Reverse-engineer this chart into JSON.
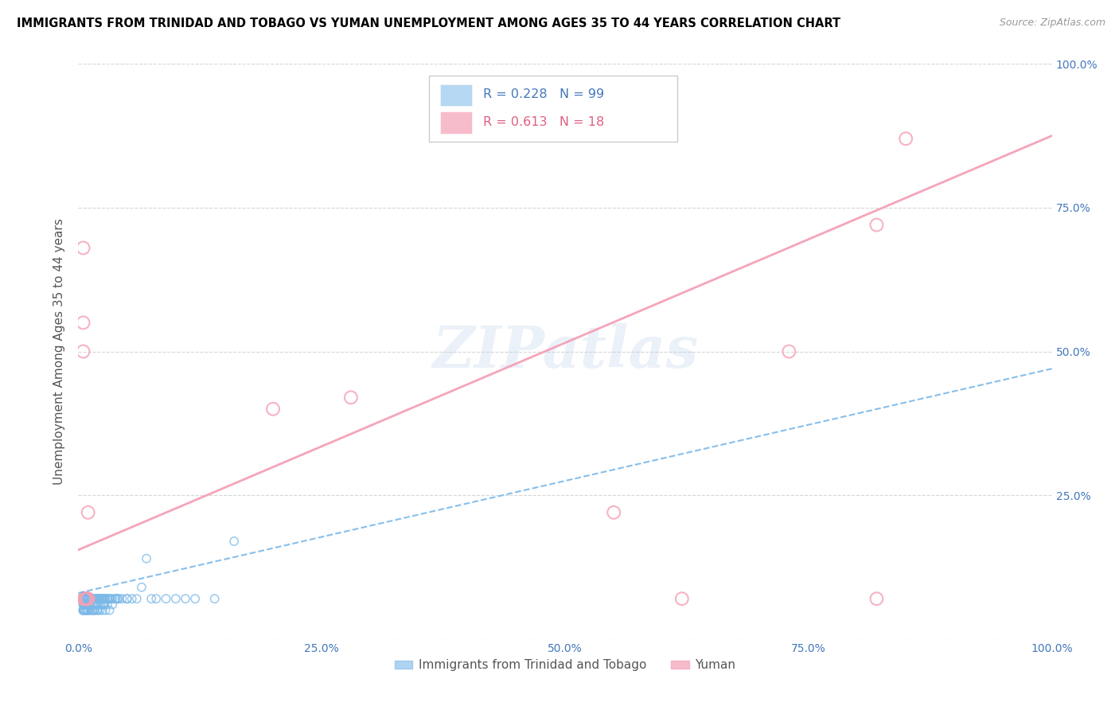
{
  "title": "IMMIGRANTS FROM TRINIDAD AND TOBAGO VS YUMAN UNEMPLOYMENT AMONG AGES 35 TO 44 YEARS CORRELATION CHART",
  "source": "Source: ZipAtlas.com",
  "ylabel": "Unemployment Among Ages 35 to 44 years",
  "xlim": [
    0,
    1.0
  ],
  "ylim": [
    0,
    1.0
  ],
  "xticks": [
    0.0,
    0.25,
    0.5,
    0.75,
    1.0
  ],
  "yticks": [
    0.0,
    0.25,
    0.5,
    0.75,
    1.0
  ],
  "xtick_labels": [
    "0.0%",
    "25.0%",
    "50.0%",
    "75.0%",
    "100.0%"
  ],
  "right_ytick_labels": [
    "25.0%",
    "50.0%",
    "75.0%",
    "100.0%"
  ],
  "legend_blue_label": "Immigrants from Trinidad and Tobago",
  "legend_pink_label": "Yuman",
  "R_blue": 0.228,
  "N_blue": 99,
  "R_pink": 0.613,
  "N_pink": 18,
  "blue_scatter_color": "#7ab8e8",
  "pink_scatter_color": "#f4a0b5",
  "watermark": "ZIPatlas",
  "blue_trend_intercept": 0.08,
  "blue_trend_slope": 0.39,
  "pink_trend_intercept": 0.155,
  "pink_trend_slope": 0.72,
  "blue_points_x": [
    0.005,
    0.005,
    0.005,
    0.005,
    0.005,
    0.005,
    0.005,
    0.006,
    0.006,
    0.006,
    0.007,
    0.007,
    0.007,
    0.007,
    0.008,
    0.008,
    0.008,
    0.008,
    0.009,
    0.009,
    0.009,
    0.01,
    0.01,
    0.01,
    0.01,
    0.01,
    0.01,
    0.01,
    0.01,
    0.01,
    0.012,
    0.012,
    0.012,
    0.012,
    0.013,
    0.013,
    0.014,
    0.014,
    0.015,
    0.015,
    0.015,
    0.016,
    0.016,
    0.016,
    0.017,
    0.017,
    0.018,
    0.018,
    0.019,
    0.019,
    0.02,
    0.02,
    0.02,
    0.02,
    0.02,
    0.021,
    0.022,
    0.022,
    0.023,
    0.023,
    0.024,
    0.025,
    0.025,
    0.025,
    0.025,
    0.026,
    0.026,
    0.027,
    0.027,
    0.028,
    0.028,
    0.03,
    0.03,
    0.03,
    0.032,
    0.032,
    0.033,
    0.035,
    0.035,
    0.038,
    0.038,
    0.04,
    0.04,
    0.042,
    0.045,
    0.05,
    0.05,
    0.055,
    0.06,
    0.065,
    0.07,
    0.075,
    0.08,
    0.09,
    0.1,
    0.11,
    0.12,
    0.14,
    0.16
  ],
  "blue_points_y": [
    0.05,
    0.05,
    0.05,
    0.06,
    0.06,
    0.07,
    0.07,
    0.05,
    0.05,
    0.06,
    0.05,
    0.06,
    0.06,
    0.07,
    0.05,
    0.06,
    0.07,
    0.07,
    0.05,
    0.06,
    0.07,
    0.05,
    0.05,
    0.06,
    0.06,
    0.07,
    0.07,
    0.07,
    0.07,
    0.07,
    0.05,
    0.06,
    0.07,
    0.07,
    0.06,
    0.07,
    0.05,
    0.07,
    0.05,
    0.06,
    0.07,
    0.05,
    0.06,
    0.07,
    0.05,
    0.07,
    0.06,
    0.07,
    0.05,
    0.07,
    0.05,
    0.06,
    0.06,
    0.07,
    0.07,
    0.07,
    0.05,
    0.07,
    0.06,
    0.07,
    0.07,
    0.05,
    0.06,
    0.07,
    0.07,
    0.06,
    0.07,
    0.06,
    0.07,
    0.05,
    0.07,
    0.06,
    0.07,
    0.07,
    0.05,
    0.07,
    0.07,
    0.06,
    0.07,
    0.07,
    0.07,
    0.07,
    0.07,
    0.07,
    0.07,
    0.07,
    0.07,
    0.07,
    0.07,
    0.09,
    0.14,
    0.07,
    0.07,
    0.07,
    0.07,
    0.07,
    0.07,
    0.07,
    0.17
  ],
  "pink_points_x": [
    0.005,
    0.005,
    0.005,
    0.006,
    0.006,
    0.007,
    0.008,
    0.009,
    0.01,
    0.01,
    0.2,
    0.28,
    0.55,
    0.62,
    0.73,
    0.82,
    0.82,
    0.85
  ],
  "pink_points_y": [
    0.68,
    0.55,
    0.5,
    0.07,
    0.07,
    0.07,
    0.07,
    0.07,
    0.07,
    0.22,
    0.4,
    0.42,
    0.22,
    0.07,
    0.5,
    0.07,
    0.72,
    0.87
  ]
}
